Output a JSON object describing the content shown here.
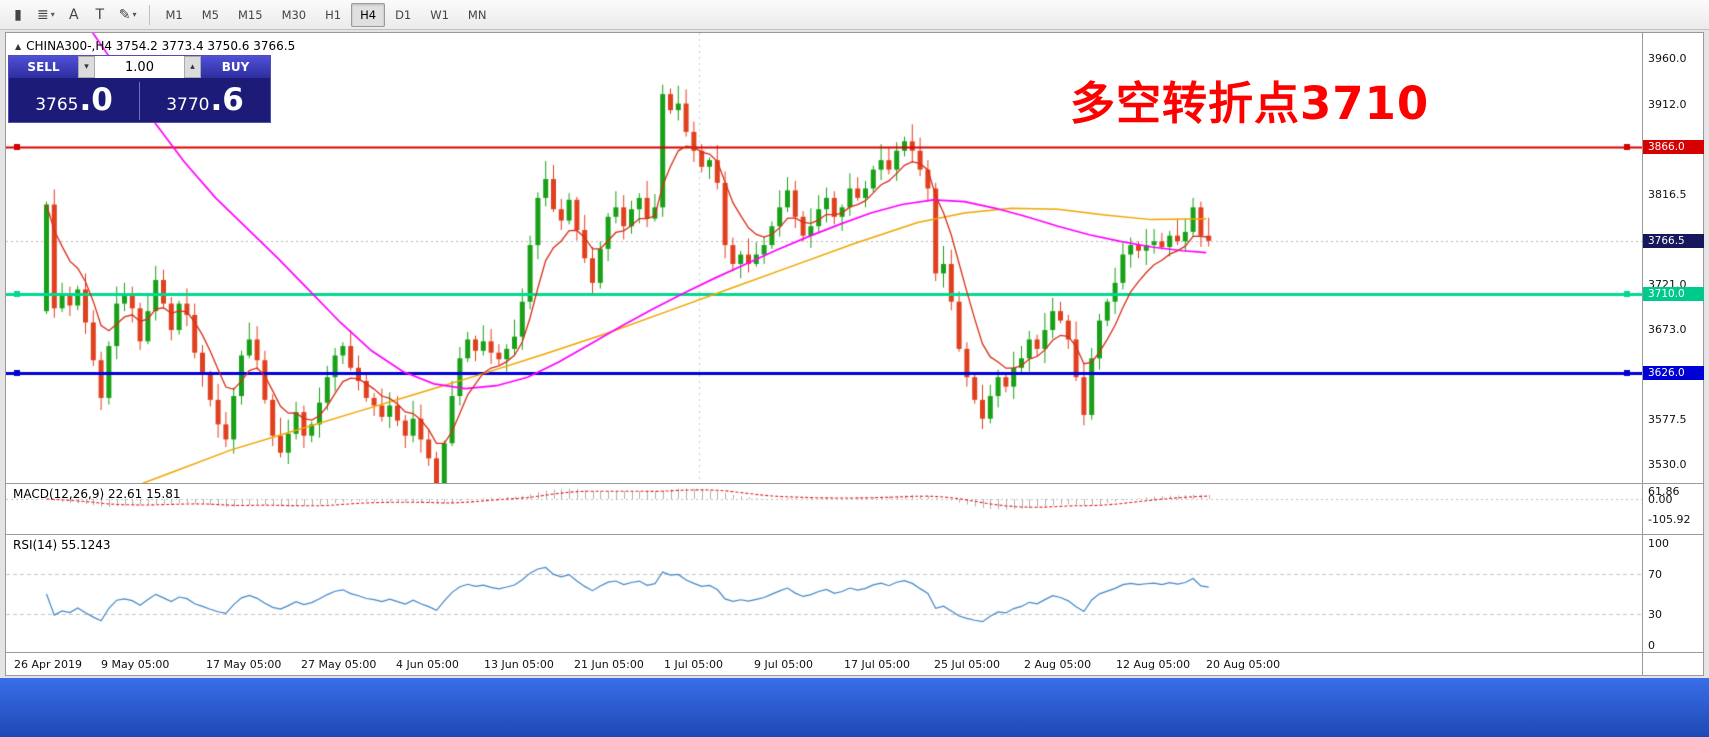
{
  "toolbar": {
    "icons": [
      {
        "name": "chart-type-icon",
        "glyph": "▮"
      },
      {
        "name": "indicators-list-icon",
        "glyph": "≣",
        "caret": "▾"
      },
      {
        "name": "cursor-tool-icon",
        "glyph": "A"
      },
      {
        "name": "text-label-icon",
        "glyph": "T"
      },
      {
        "name": "draw-tools-icon",
        "glyph": "✎",
        "caret": "▾"
      }
    ],
    "timeframes": [
      "M1",
      "M5",
      "M15",
      "M30",
      "H1",
      "H4",
      "D1",
      "W1",
      "MN"
    ],
    "active_timeframe": "H4"
  },
  "chart": {
    "toggle_glyph": "▲",
    "title": "CHINA300-,H4 3754.2 3773.4 3750.6 3766.5",
    "annotation": "多空转折点3710",
    "annotation_color": "#ff0000"
  },
  "order_panel": {
    "sell_label": "SELL",
    "buy_label": "BUY",
    "volume": "1.00",
    "stepper_down": "▾",
    "stepper_up": "▴",
    "sell_price": "3765",
    "sell_price_big": ".0",
    "buy_price": "3770",
    "buy_price_big": ".6"
  },
  "price_axis": {
    "ticks": [
      "3960.0",
      "3912.0",
      "3816.5",
      "3721.0",
      "3673.0",
      "3577.5",
      "3530.0"
    ],
    "badges": [
      {
        "label": "3866.0",
        "bg": "#d60000",
        "fg": "#ffffff",
        "price": 3866.0
      },
      {
        "label": "3766.5",
        "bg": "#17175e",
        "fg": "#ffffff",
        "price": 3766.5
      },
      {
        "label": "3710.0",
        "bg": "#00c98c",
        "fg": "#ffffff",
        "price": 3710.0
      },
      {
        "label": "3626.0",
        "bg": "#0000d6",
        "fg": "#ffffff",
        "price": 3626.0
      }
    ]
  },
  "macd_panel": {
    "label": "MACD(12,26,9) 22.61 15.81",
    "axis": [
      "61.86",
      "0.00",
      "-105.92"
    ]
  },
  "rsi_panel": {
    "label": "RSI(14) 55.1243",
    "axis": [
      "100",
      "70",
      "30",
      "0"
    ]
  },
  "time_axis": [
    "26 Apr 2019",
    "9 May 05:00",
    "17 May 05:00",
    "27 May 05:00",
    "4 Jun 05:00",
    "13 Jun 05:00",
    "21 Jun 05:00",
    "1 Jul 05:00",
    "9 Jul 05:00",
    "17 Jul 05:00",
    "25 Jul 05:00",
    "2 Aug 05:00",
    "12 Aug 05:00",
    "20 Aug 05:00"
  ],
  "chart_data": {
    "type": "candlestick",
    "symbol": "CHINA300-",
    "timeframe": "H4",
    "last_ohlc": {
      "open": 3754.2,
      "high": 3773.4,
      "low": 3750.6,
      "close": 3766.5
    },
    "price_range": [
      3512,
      3973
    ],
    "current_price": 3766.5,
    "first_open": 3692,
    "closes": [
      3805,
      3695,
      3710,
      3698,
      3715,
      3680,
      3640,
      3600,
      3655,
      3700,
      3708,
      3695,
      3660,
      3692,
      3725,
      3700,
      3672,
      3700,
      3688,
      3648,
      3625,
      3598,
      3572,
      3556,
      3602,
      3645,
      3662,
      3640,
      3598,
      3560,
      3542,
      3562,
      3585,
      3560,
      3572,
      3595,
      3622,
      3645,
      3655,
      3632,
      3618,
      3600,
      3592,
      3580,
      3592,
      3576,
      3560,
      3578,
      3556,
      3536,
      3508,
      3552,
      3602,
      3642,
      3662,
      3650,
      3660,
      3648,
      3641,
      3652,
      3665,
      3702,
      3762,
      3812,
      3832,
      3800,
      3788,
      3810,
      3778,
      3748,
      3722,
      3758,
      3792,
      3802,
      3782,
      3800,
      3812,
      3790,
      3802,
      3922,
      3905,
      3912,
      3882,
      3862,
      3845,
      3852,
      3828,
      3762,
      3742,
      3752,
      3742,
      3752,
      3762,
      3782,
      3802,
      3820,
      3792,
      3772,
      3782,
      3800,
      3812,
      3792,
      3802,
      3822,
      3812,
      3822,
      3842,
      3852,
      3842,
      3862,
      3872,
      3862,
      3842,
      3822,
      3732,
      3742,
      3702,
      3652,
      3622,
      3598,
      3578,
      3602,
      3622,
      3612,
      3632,
      3642,
      3662,
      3652,
      3672,
      3692,
      3682,
      3662,
      3622,
      3582,
      3642,
      3682,
      3702,
      3722,
      3752,
      3762,
      3756,
      3762,
      3766,
      3760,
      3772,
      3766,
      3776,
      3802,
      3772,
      3766.5
    ],
    "levels": [
      {
        "price": 3866.0,
        "color": "#d60000",
        "width": 2
      },
      {
        "price": 3710.0,
        "color": "#00d98e",
        "width": 3
      },
      {
        "price": 3626.0,
        "color": "#0000d6",
        "width": 3
      }
    ],
    "ma_red_period": 7,
    "ma_orange": [
      [
        0,
        3468
      ],
      [
        8,
        3495
      ],
      [
        16,
        3520
      ],
      [
        24,
        3545
      ],
      [
        32,
        3565
      ],
      [
        40,
        3585
      ],
      [
        48,
        3605
      ],
      [
        56,
        3625
      ],
      [
        64,
        3646
      ],
      [
        72,
        3668
      ],
      [
        80,
        3692
      ],
      [
        88,
        3716
      ],
      [
        96,
        3740
      ],
      [
        104,
        3764
      ],
      [
        112,
        3786
      ],
      [
        118,
        3796
      ],
      [
        124,
        3801
      ],
      [
        130,
        3800
      ],
      [
        136,
        3794
      ],
      [
        142,
        3789
      ],
      [
        149,
        3790
      ]
    ],
    "ma_magenta": [
      [
        6,
        3990
      ],
      [
        10,
        3942
      ],
      [
        14,
        3894
      ],
      [
        18,
        3850
      ],
      [
        22,
        3812
      ],
      [
        26,
        3780
      ],
      [
        30,
        3748
      ],
      [
        34,
        3714
      ],
      [
        38,
        3680
      ],
      [
        42,
        3650
      ],
      [
        46,
        3628
      ],
      [
        50,
        3615
      ],
      [
        54,
        3610
      ],
      [
        58,
        3613
      ],
      [
        62,
        3622
      ],
      [
        66,
        3638
      ],
      [
        70,
        3657
      ],
      [
        74,
        3676
      ],
      [
        78,
        3694
      ],
      [
        82,
        3711
      ],
      [
        86,
        3727
      ],
      [
        90,
        3742
      ],
      [
        94,
        3757
      ],
      [
        98,
        3771
      ],
      [
        102,
        3784
      ],
      [
        106,
        3796
      ],
      [
        110,
        3805
      ],
      [
        114,
        3810
      ],
      [
        118,
        3808
      ],
      [
        122,
        3801
      ],
      [
        126,
        3792
      ],
      [
        130,
        3782
      ],
      [
        134,
        3773
      ],
      [
        138,
        3766
      ],
      [
        142,
        3760
      ],
      [
        146,
        3756
      ],
      [
        149,
        3754
      ]
    ],
    "macd": {
      "fast": 12,
      "slow": 26,
      "signal": 9,
      "current": [
        22.61,
        15.81
      ],
      "range": [
        -105.92,
        61.86
      ]
    },
    "rsi": {
      "period": 14,
      "current": 55.1243,
      "range": [
        0,
        100
      ],
      "bands": [
        70,
        30
      ]
    },
    "candle_up_color": "#18a018",
    "candle_down_color": "#e0401e"
  }
}
